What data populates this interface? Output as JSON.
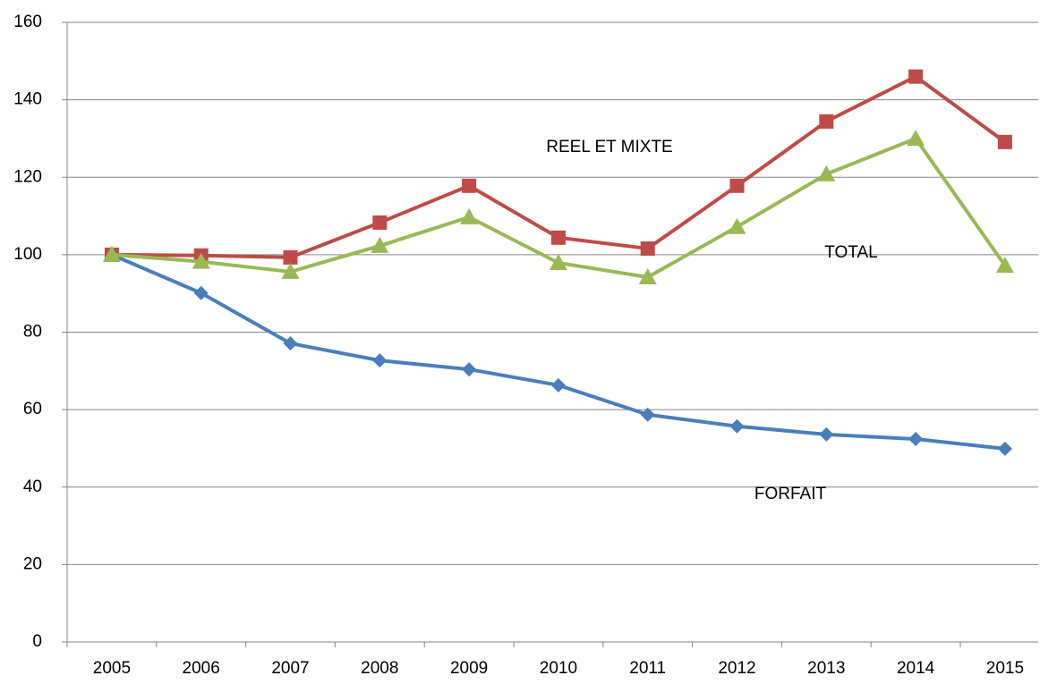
{
  "chart_data": {
    "type": "line",
    "categories": [
      "2005",
      "2006",
      "2007",
      "2008",
      "2009",
      "2010",
      "2011",
      "2012",
      "2013",
      "2014",
      "2015"
    ],
    "series": [
      {
        "name": "FORFAIT",
        "color": "#4a7ebb",
        "marker": "diamond",
        "values": [
          100,
          90.1,
          77.1,
          72.7,
          70.4,
          66.3,
          58.7,
          55.7,
          53.6,
          52.4,
          49.9
        ]
      },
      {
        "name": "REEL ET MIXTE",
        "color": "#be4b48",
        "marker": "square",
        "values": [
          100,
          99.8,
          99.3,
          108.3,
          117.8,
          104.4,
          101.6,
          117.8,
          134.4,
          146,
          129.1
        ]
      },
      {
        "name": "TOTAL",
        "color": "#98b954",
        "marker": "triangle",
        "values": [
          100,
          98.2,
          95.6,
          102.3,
          109.7,
          97.9,
          94.2,
          107.2,
          120.8,
          130,
          97.2
        ]
      }
    ],
    "ylim": [
      0,
      160
    ],
    "yticks": [
      0,
      20,
      40,
      60,
      80,
      100,
      120,
      140,
      160
    ],
    "grid": true
  }
}
